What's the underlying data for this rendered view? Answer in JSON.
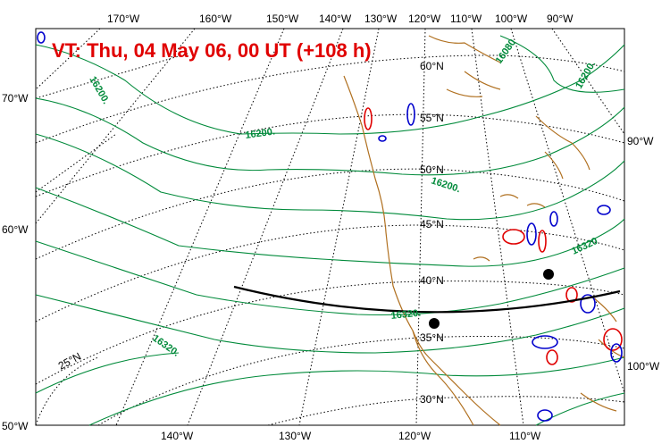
{
  "title": "VT:  Thu, 04 May 06, 00 UT (+108 h)",
  "colors": {
    "title": "#e00000",
    "geopotential": "#008a3a",
    "coast": "#b07020",
    "grid": "#000000",
    "track": "#000000",
    "anomaly_positive": "#e00000",
    "anomaly_negative": "#0000cc"
  },
  "top_longitude_labels": [
    "170°W",
    "160°W",
    "150°W",
    "140°W",
    "130°W",
    "120°W",
    "110°W",
    "100°W",
    "90°W"
  ],
  "bottom_longitude_labels": [
    "140°W",
    "130°W",
    "120°W",
    "110°W"
  ],
  "left_latitude_labels": [
    "70°W",
    "60°W",
    "50°W"
  ],
  "right_labels": [
    "90°W",
    "100°W"
  ],
  "inner_latitude_labels": [
    "60°N",
    "55°N",
    "50°N",
    "45°N",
    "40°N",
    "35°N",
    "30°N",
    "25°N"
  ],
  "contour_labels": [
    "16080",
    "16200.",
    "16200.",
    "16200.",
    "16200.",
    "16320",
    "16320.",
    "16320."
  ]
}
